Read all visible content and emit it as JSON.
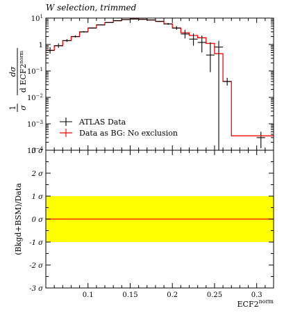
{
  "chart_data": [
    {
      "type": "line",
      "panel": "main",
      "title": "W selection, trimmed",
      "ylabel_numerator": "dσ",
      "ylabel_denominator": "d ECF2",
      "ylabel_denominator_sup": "norm",
      "ylabel_prefix_num": "1",
      "ylabel_prefix_den": "σ",
      "yscale": "log",
      "xlim": [
        0.05,
        0.32
      ],
      "ylim": [
        0.0001,
        10
      ],
      "y_ticks": [
        {
          "value": 10,
          "base": "10",
          "exp": "1"
        },
        {
          "value": 1,
          "base": "1",
          "exp": ""
        },
        {
          "value": 0.1,
          "base": "10",
          "exp": "−1"
        },
        {
          "value": 0.01,
          "base": "10",
          "exp": "−2"
        },
        {
          "value": 0.001,
          "base": "10",
          "exp": "−3"
        },
        {
          "value": 0.0001,
          "base": "10",
          "exp": "−4"
        }
      ],
      "series": [
        {
          "name": "Data as BG: No exclusion",
          "color": "#ff0000",
          "style": "step",
          "bin_edges": [
            0.05,
            0.06,
            0.07,
            0.08,
            0.09,
            0.1,
            0.11,
            0.12,
            0.13,
            0.14,
            0.15,
            0.16,
            0.17,
            0.18,
            0.19,
            0.2,
            0.21,
            0.22,
            0.23,
            0.24,
            0.25,
            0.26,
            0.27,
            0.28,
            0.29,
            0.3,
            0.32
          ],
          "values": [
            0.6,
            0.9,
            1.4,
            2.0,
            3.0,
            4.2,
            5.5,
            6.8,
            8.0,
            8.8,
            9.2,
            9.0,
            8.5,
            7.5,
            6.0,
            4.2,
            2.8,
            2.2,
            1.8,
            1.1,
            0.45,
            0.04,
            0.00035,
            0.00035,
            0.00035,
            0.00035
          ]
        },
        {
          "name": "ATLAS Data",
          "color": "#000000",
          "style": "points",
          "x": [
            0.055,
            0.065,
            0.075,
            0.085,
            0.095,
            0.105,
            0.115,
            0.125,
            0.135,
            0.145,
            0.155,
            0.165,
            0.175,
            0.185,
            0.195,
            0.205,
            0.215,
            0.225,
            0.235,
            0.245,
            0.255,
            0.265,
            0.305
          ],
          "y": [
            0.6,
            0.9,
            1.4,
            2.0,
            3.0,
            4.2,
            5.5,
            6.8,
            8.0,
            8.8,
            9.2,
            9.0,
            8.5,
            7.5,
            6.0,
            4.2,
            2.5,
            1.6,
            1.2,
            0.4,
            0.8,
            0.04,
            0.0003
          ],
          "err_low": [
            0.45,
            0.75,
            1.25,
            1.85,
            2.85,
            4.05,
            5.3,
            6.6,
            7.8,
            8.6,
            9.0,
            8.8,
            8.3,
            7.2,
            5.6,
            3.6,
            1.7,
            0.9,
            0.5,
            0.09,
            8e-05,
            0.028,
            0.00012
          ],
          "err_high": [
            0.8,
            1.1,
            1.6,
            2.2,
            3.2,
            4.4,
            5.7,
            7.0,
            8.2,
            9.0,
            9.4,
            9.2,
            8.8,
            7.9,
            6.5,
            5.0,
            3.6,
            2.6,
            2.2,
            1.2,
            1.4,
            0.055,
            0.0005
          ],
          "x_halfwidth": 0.005
        }
      ],
      "legend": {
        "placement": "bottom-left",
        "entries": [
          "ATLAS Data",
          "Data as BG: No exclusion"
        ]
      }
    },
    {
      "type": "line",
      "panel": "ratio",
      "ylabel": "(Bkgd+BSM)/Data",
      "xlabel": "ECF2",
      "xlabel_sup": "norm",
      "xlim": [
        0.05,
        0.32
      ],
      "ylim": [
        -3,
        3
      ],
      "x_ticks": [
        "0.1",
        "0.15",
        "0.2",
        "0.25",
        "0.3"
      ],
      "x_tick_values": [
        0.1,
        0.15,
        0.2,
        0.25,
        0.3
      ],
      "y_ticks": [
        {
          "value": 3,
          "label": "3 σ"
        },
        {
          "value": 2,
          "label": "2 σ"
        },
        {
          "value": 1,
          "label": "1 σ"
        },
        {
          "value": 0,
          "label": "0 σ"
        },
        {
          "value": -1,
          "label": "-1 σ"
        },
        {
          "value": -2,
          "label": "-2 σ"
        },
        {
          "value": -3,
          "label": "-3 σ"
        }
      ],
      "band": {
        "low": -1,
        "high": 1,
        "color": "#ffff00"
      },
      "line": {
        "value": 0,
        "color": "#ff0000"
      }
    }
  ]
}
